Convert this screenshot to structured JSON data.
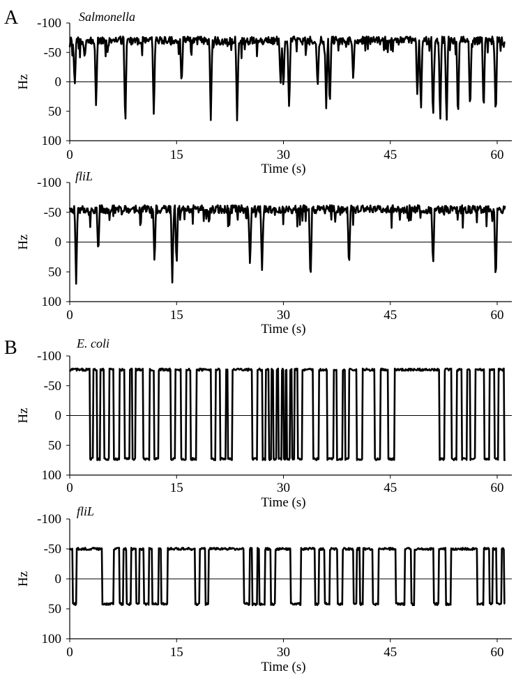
{
  "figure": {
    "panel_letters": [
      "A",
      "B"
    ]
  },
  "chart_data": [
    {
      "type": "line",
      "panel": "A",
      "title": "Salmonella",
      "xlabel": "Time (s)",
      "ylabel": "Hz",
      "xlim": [
        0,
        60
      ],
      "ylim": [
        100,
        -100
      ],
      "y_inverted": true,
      "xticks": [
        0,
        15,
        30,
        45,
        60
      ],
      "yticks": [
        -100,
        -50,
        0,
        50,
        100
      ],
      "baseline_at_zero": true,
      "line_color": "#000000",
      "ccw_level": -70,
      "noise": 7,
      "cw_level": 55,
      "reversals": [
        {
          "t": 0.7,
          "depth": 10
        },
        {
          "t": 2.1,
          "depth": -40
        },
        {
          "t": 3.7,
          "depth": 45
        },
        {
          "t": 5.3,
          "depth": -50
        },
        {
          "t": 7.8,
          "depth": 83
        },
        {
          "t": 11.8,
          "depth": 60
        },
        {
          "t": 15.7,
          "depth": 10
        },
        {
          "t": 19.8,
          "depth": 65
        },
        {
          "t": 23.5,
          "depth": 72
        },
        {
          "t": 29.6,
          "depth": 5
        },
        {
          "t": 30.0,
          "depth": 15
        },
        {
          "t": 30.8,
          "depth": 52
        },
        {
          "t": 34.8,
          "depth": 15
        },
        {
          "t": 36.0,
          "depth": 45
        },
        {
          "t": 36.5,
          "depth": 50
        },
        {
          "t": 39.8,
          "depth": 0
        },
        {
          "t": 48.8,
          "depth": 30
        },
        {
          "t": 49.3,
          "depth": 55
        },
        {
          "t": 51.0,
          "depth": 72
        },
        {
          "t": 52.0,
          "depth": 75
        },
        {
          "t": 52.9,
          "depth": 78
        },
        {
          "t": 54.5,
          "depth": 73
        },
        {
          "t": 56.2,
          "depth": 57
        },
        {
          "t": 58.1,
          "depth": 60
        },
        {
          "t": 59.8,
          "depth": 68
        }
      ]
    },
    {
      "type": "line",
      "panel": "A",
      "title": "fliL",
      "xlabel": "Time (s)",
      "ylabel": "Hz",
      "xlim": [
        0,
        60
      ],
      "ylim": [
        100,
        -100
      ],
      "y_inverted": true,
      "xticks": [
        0,
        15,
        30,
        45,
        60
      ],
      "yticks": [
        -100,
        -50,
        0,
        50,
        100
      ],
      "baseline_at_zero": true,
      "line_color": "#000000",
      "ccw_level": -55,
      "noise": 7,
      "cw_level": 50,
      "reversals": [
        {
          "t": 0.9,
          "depth": 70
        },
        {
          "t": 4.0,
          "depth": 22
        },
        {
          "t": 11.9,
          "depth": 38
        },
        {
          "t": 14.4,
          "depth": 68
        },
        {
          "t": 15.0,
          "depth": 45
        },
        {
          "t": 25.3,
          "depth": 40
        },
        {
          "t": 27.0,
          "depth": 47
        },
        {
          "t": 33.8,
          "depth": 75
        },
        {
          "t": 39.2,
          "depth": 50
        },
        {
          "t": 51.0,
          "depth": 45
        },
        {
          "t": 59.8,
          "depth": 75
        }
      ]
    },
    {
      "type": "line",
      "panel": "B",
      "title": "E. coli",
      "xlabel": "Time (s)",
      "ylabel": "Hz",
      "xlim": [
        0,
        60
      ],
      "ylim": [
        100,
        -100
      ],
      "y_inverted": true,
      "xticks": [
        0,
        15,
        30,
        45,
        60
      ],
      "yticks": [
        -100,
        -50,
        0,
        50,
        100
      ],
      "baseline_at_zero": true,
      "line_color": "#000000",
      "ccw_level": -77,
      "noise": 2,
      "cw_level": 73,
      "cw_intervals": [
        [
          2.8,
          3.3
        ],
        [
          3.8,
          4.3
        ],
        [
          4.8,
          5.5
        ],
        [
          6.2,
          7.0
        ],
        [
          7.7,
          8.4
        ],
        [
          8.8,
          9.2
        ],
        [
          10.3,
          11.2
        ],
        [
          11.8,
          12.5
        ],
        [
          14.2,
          14.8
        ],
        [
          15.6,
          16.3
        ],
        [
          17.0,
          17.8
        ],
        [
          19.8,
          20.5
        ],
        [
          21.1,
          21.9
        ],
        [
          22.2,
          22.8
        ],
        [
          25.6,
          26.3
        ],
        [
          27.0,
          27.5
        ],
        [
          27.9,
          28.3
        ],
        [
          28.6,
          29.0
        ],
        [
          29.3,
          29.7
        ],
        [
          30.0,
          30.3
        ],
        [
          30.5,
          30.9
        ],
        [
          31.2,
          31.5
        ],
        [
          32.0,
          32.6
        ],
        [
          34.2,
          35.0
        ],
        [
          36.1,
          37.0
        ],
        [
          37.5,
          38.3
        ],
        [
          38.7,
          39.2
        ],
        [
          40.3,
          41.1
        ],
        [
          42.8,
          43.6
        ],
        [
          44.7,
          45.6
        ],
        [
          51.9,
          52.6
        ],
        [
          53.6,
          54.3
        ],
        [
          55.0,
          55.8
        ],
        [
          56.2,
          56.9
        ],
        [
          58.2,
          58.9
        ],
        [
          59.6,
          60.2
        ],
        [
          61.0,
          61.5
        ]
      ]
    },
    {
      "type": "line",
      "panel": "B",
      "title": "fliL",
      "xlabel": "Time (s)",
      "ylabel": "Hz",
      "xlim": [
        0,
        60
      ],
      "ylim": [
        100,
        -100
      ],
      "y_inverted": true,
      "xticks": [
        0,
        15,
        30,
        45,
        60
      ],
      "yticks": [
        -100,
        -50,
        0,
        50,
        100
      ],
      "baseline_at_zero": true,
      "line_color": "#000000",
      "ccw_level": -50,
      "noise": 2,
      "cw_level": 42,
      "cw_intervals": [
        [
          0.4,
          0.9
        ],
        [
          4.5,
          6.2
        ],
        [
          7.0,
          7.5
        ],
        [
          8.0,
          8.6
        ],
        [
          9.3,
          9.8
        ],
        [
          10.4,
          11.1
        ],
        [
          11.6,
          12.5
        ],
        [
          12.8,
          13.7
        ],
        [
          17.6,
          18.2
        ],
        [
          19.0,
          19.5
        ],
        [
          24.4,
          25.2
        ],
        [
          25.6,
          26.3
        ],
        [
          26.6,
          27.4
        ],
        [
          28.2,
          28.8
        ],
        [
          31.0,
          32.4
        ],
        [
          34.4,
          35.0
        ],
        [
          35.8,
          36.5
        ],
        [
          37.6,
          38.3
        ],
        [
          39.8,
          40.3
        ],
        [
          40.7,
          41.2
        ],
        [
          42.5,
          43.3
        ],
        [
          45.8,
          47.0
        ],
        [
          47.9,
          48.4
        ],
        [
          51.1,
          51.8
        ],
        [
          52.8,
          53.5
        ],
        [
          57.2,
          58.1
        ],
        [
          58.9,
          59.4
        ],
        [
          59.9,
          60.6
        ],
        [
          61.0,
          61.4
        ]
      ]
    }
  ]
}
